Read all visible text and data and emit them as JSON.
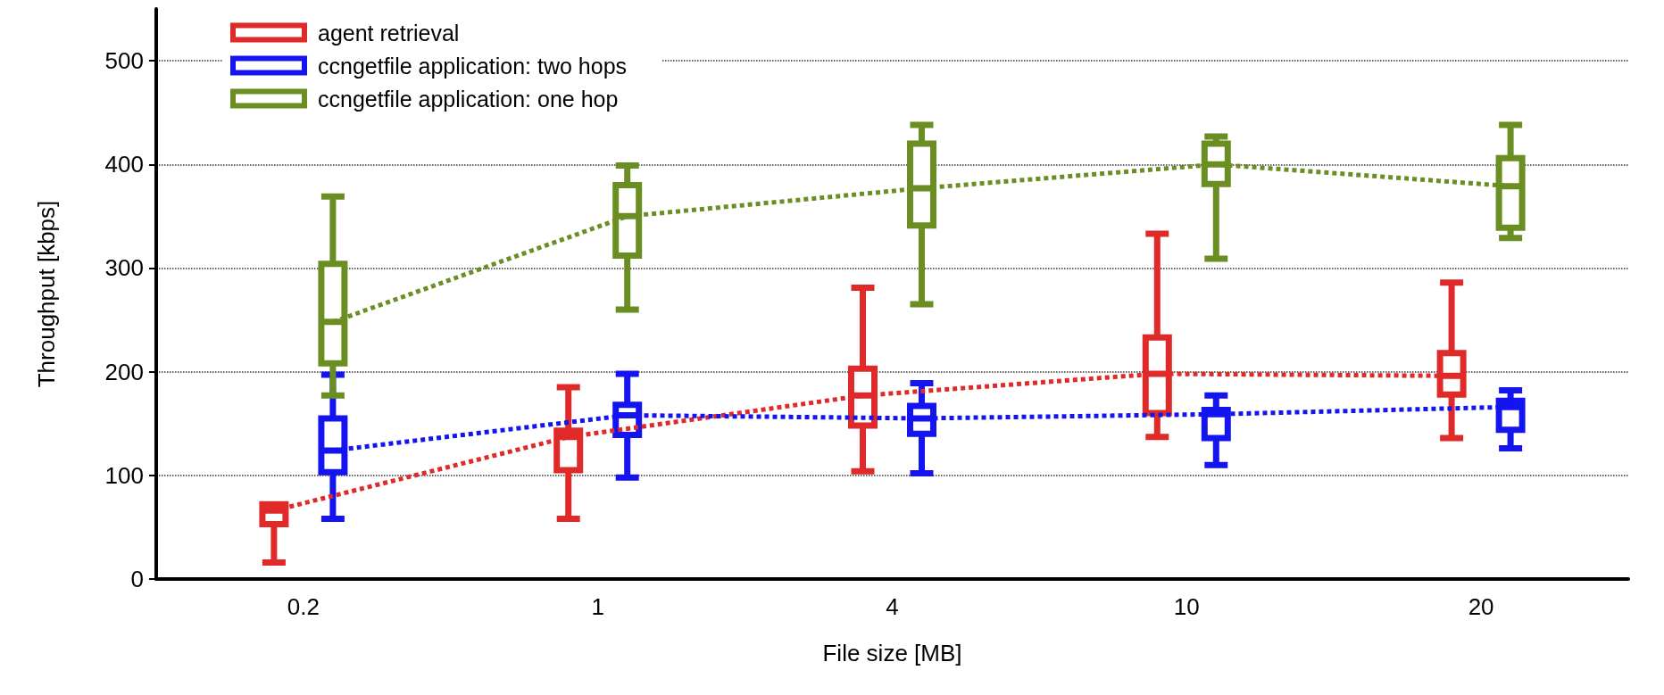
{
  "chart_data": {
    "type": "box",
    "xlabel": "File size [MB]",
    "ylabel": "Throughput [kbps]",
    "categories": [
      "0.2",
      "1",
      "4",
      "10",
      "20"
    ],
    "ylim": [
      0,
      550
    ],
    "yticks": [
      0,
      100,
      200,
      300,
      400,
      500
    ],
    "grid": "y",
    "legend": "top left",
    "marker": "none",
    "series": [
      {
        "name": "agent retrieval",
        "color": "#e02a2a",
        "boxes": [
          {
            "low": 16,
            "q1": 53,
            "median": 66,
            "q3": 72,
            "high": 72
          },
          {
            "low": 58,
            "q1": 105,
            "median": 137,
            "q3": 143,
            "high": 185
          },
          {
            "low": 104,
            "q1": 148,
            "median": 177,
            "q3": 203,
            "high": 281
          },
          {
            "low": 137,
            "q1": 160,
            "median": 198,
            "q3": 233,
            "high": 333
          },
          {
            "low": 136,
            "q1": 178,
            "median": 196,
            "q3": 218,
            "high": 286
          }
        ]
      },
      {
        "name": "ccngetfile application: two hops",
        "color": "#1414f0",
        "boxes": [
          {
            "low": 58,
            "q1": 103,
            "median": 124,
            "q3": 155,
            "high": 197
          },
          {
            "low": 98,
            "q1": 139,
            "median": 158,
            "q3": 168,
            "high": 198
          },
          {
            "low": 102,
            "q1": 140,
            "median": 155,
            "q3": 167,
            "high": 189
          },
          {
            "low": 110,
            "q1": 136,
            "median": 159,
            "q3": 163,
            "high": 177
          },
          {
            "low": 126,
            "q1": 144,
            "median": 166,
            "q3": 172,
            "high": 182
          }
        ]
      },
      {
        "name": "ccngetfile application: one hop",
        "color": "#6b8e23",
        "boxes": [
          {
            "low": 177,
            "q1": 208,
            "median": 248,
            "q3": 304,
            "high": 369
          },
          {
            "low": 260,
            "q1": 312,
            "median": 350,
            "q3": 380,
            "high": 399
          },
          {
            "low": 265,
            "q1": 341,
            "median": 377,
            "q3": 420,
            "high": 438
          },
          {
            "low": 309,
            "q1": 381,
            "median": 400,
            "q3": 420,
            "high": 427
          },
          {
            "low": 329,
            "q1": 339,
            "median": 379,
            "q3": 406,
            "high": 438
          }
        ]
      },
      {
        "type": "line",
        "color": "#e02a2a",
        "line_style": "dotted",
        "values": [
          66,
          137,
          177,
          198,
          196
        ]
      },
      {
        "type": "line",
        "color": "#1414f0",
        "line_style": "dotted",
        "values": [
          124,
          158,
          155,
          159,
          166
        ]
      },
      {
        "type": "line",
        "color": "#6b8e23",
        "line_style": "dotted",
        "values": [
          248,
          350,
          377,
          400,
          379
        ]
      }
    ]
  }
}
